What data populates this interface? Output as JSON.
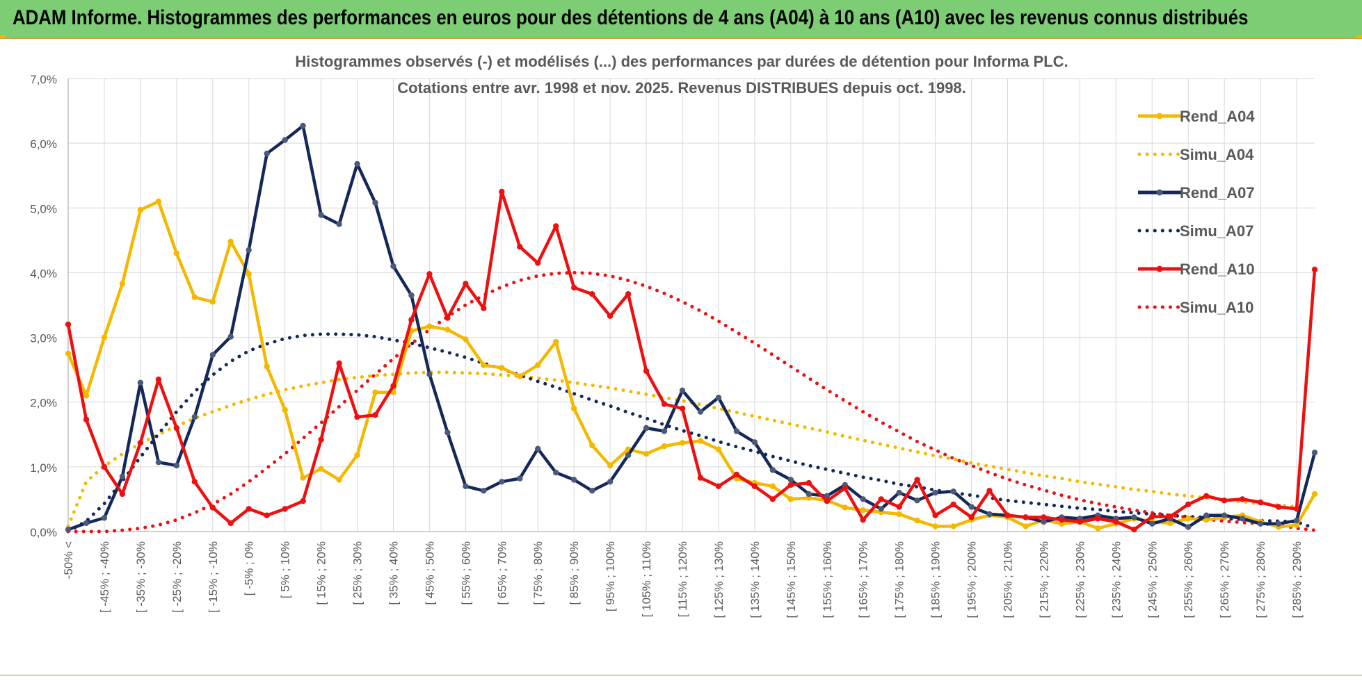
{
  "header": {
    "title": "ADAM Informe. Histogrammes des performances en euros pour des détentions de 4 ans (A04) à 10 ans (A10) avec les revenus connus distribués"
  },
  "colors": {
    "header_bg": "#7ccd74",
    "rend_a04": "#f5b800",
    "rend_a07": "#14285a",
    "rend_a10": "#ee1010",
    "grid": "#d9d9d9"
  },
  "chart_data": {
    "type": "line",
    "title": "Histogrammes observés (-) et modélisés (...) des performances par durées de détention pour Informa PLC.",
    "subtitle": "Cotations entre avr. 1998 et nov. 2025. Revenus DISTRIBUES depuis oct. 1998.",
    "xlabel": "",
    "ylabel": "",
    "ylim": [
      0,
      0.07
    ],
    "yticks": [
      "0,0%",
      "1,0%",
      "2,0%",
      "3,0%",
      "4,0%",
      "5,0%",
      "6,0%",
      "7,0%"
    ],
    "x_tick_labels": [
      "-50% <",
      "[ -45% ; -40%",
      "[ -35% ; -30%",
      "[ -25% ; -20%",
      "[ -15% ; -10%",
      "[ -5% ; 0%",
      "[ 5% ; 10%",
      "[ 15% ; 20%",
      "[ 25% ; 30%",
      "[ 35% ; 40%",
      "[ 45% ; 50%",
      "[ 55% ; 60%",
      "[ 65% ; 70%",
      "[ 75% ; 80%",
      "[ 85% ; 90%",
      "[ 95% ; 100%",
      "[ 105% ; 110%",
      "[ 115% ; 120%",
      "[ 125% ; 130%",
      "[ 135% ; 140%",
      "[ 145% ; 150%",
      "[ 155% ; 160%",
      "[ 165% ; 170%",
      "[ 175% ; 180%",
      "[ 185% ; 190%",
      "[ 195% ; 200%",
      "[ 205% ; 210%",
      "[ 215% ; 220%",
      "[ 225% ; 230%",
      "[ 235% ; 240%",
      "[ 245% ; 250%",
      "[ 255% ; 260%",
      "[ 265% ; 270%",
      "[ 275% ; 280%",
      "[ 285% ; 290%"
    ],
    "n_points": 70,
    "legend_position": "right",
    "series": [
      {
        "name": "Rend_A04",
        "style": "solid",
        "color": "#f5b800",
        "values": [
          2.75,
          2.1,
          3.0,
          3.83,
          4.97,
          5.1,
          4.3,
          3.62,
          3.55,
          4.48,
          3.98,
          2.55,
          1.88,
          0.83,
          0.97,
          0.8,
          1.18,
          2.15,
          2.15,
          3.1,
          3.17,
          3.12,
          2.97,
          2.57,
          2.53,
          2.4,
          2.57,
          2.93,
          1.9,
          1.33,
          1.02,
          1.27,
          1.2,
          1.32,
          1.37,
          1.4,
          1.27,
          0.82,
          0.75,
          0.7,
          0.5,
          0.52,
          0.48,
          0.37,
          0.33,
          0.3,
          0.27,
          0.17,
          0.08,
          0.08,
          0.18,
          0.25,
          0.22,
          0.08,
          0.18,
          0.12,
          0.15,
          0.05,
          0.12,
          0.2,
          0.15,
          0.13,
          0.2,
          0.18,
          0.22,
          0.25,
          0.15,
          0.07,
          0.1,
          0.58
        ]
      },
      {
        "name": "Simu_A04",
        "style": "dotted",
        "color": "#f5b800",
        "values": [
          0.08,
          0.77,
          1.01,
          1.2,
          1.36,
          1.5,
          1.63,
          1.75,
          1.85,
          1.95,
          2.04,
          2.12,
          2.19,
          2.25,
          2.3,
          2.35,
          2.38,
          2.41,
          2.43,
          2.45,
          2.46,
          2.46,
          2.45,
          2.44,
          2.42,
          2.4,
          2.37,
          2.34,
          2.3,
          2.26,
          2.22,
          2.17,
          2.12,
          2.07,
          2.02,
          1.96,
          1.9,
          1.84,
          1.78,
          1.72,
          1.66,
          1.6,
          1.54,
          1.47,
          1.41,
          1.35,
          1.29,
          1.23,
          1.17,
          1.12,
          1.06,
          1.01,
          0.96,
          0.91,
          0.86,
          0.82,
          0.77,
          0.73,
          0.69,
          0.65,
          0.62,
          0.58,
          0.55,
          0.52,
          0.49,
          0.46,
          0.43,
          0.41,
          0.38,
          0.36
        ]
      },
      {
        "name": "Rend_A07",
        "style": "solid",
        "color": "#14285a",
        "values": [
          0.03,
          0.13,
          0.21,
          0.85,
          2.3,
          1.07,
          1.02,
          1.77,
          2.73,
          3.01,
          4.35,
          5.84,
          6.05,
          6.27,
          4.89,
          4.75,
          5.68,
          5.08,
          4.1,
          3.65,
          2.43,
          1.53,
          0.7,
          0.63,
          0.77,
          0.82,
          1.28,
          0.91,
          0.8,
          0.63,
          0.77,
          1.18,
          1.6,
          1.55,
          2.18,
          1.85,
          2.07,
          1.55,
          1.38,
          0.95,
          0.8,
          0.58,
          0.55,
          0.72,
          0.5,
          0.35,
          0.6,
          0.48,
          0.6,
          0.62,
          0.38,
          0.27,
          0.25,
          0.22,
          0.15,
          0.22,
          0.2,
          0.25,
          0.2,
          0.22,
          0.12,
          0.2,
          0.07,
          0.25,
          0.25,
          0.2,
          0.12,
          0.12,
          0.17,
          1.22
        ]
      },
      {
        "name": "Simu_A07",
        "style": "dotted",
        "color": "#14285a",
        "values": [
          0.0,
          0.16,
          0.43,
          0.78,
          1.15,
          1.51,
          1.85,
          2.16,
          2.42,
          2.63,
          2.79,
          2.9,
          2.98,
          3.03,
          3.05,
          3.05,
          3.04,
          3.01,
          2.96,
          2.91,
          2.84,
          2.77,
          2.69,
          2.6,
          2.51,
          2.42,
          2.32,
          2.23,
          2.13,
          2.03,
          1.94,
          1.84,
          1.75,
          1.65,
          1.56,
          1.48,
          1.39,
          1.31,
          1.24,
          1.16,
          1.09,
          1.02,
          0.96,
          0.9,
          0.84,
          0.79,
          0.73,
          0.69,
          0.64,
          0.6,
          0.56,
          0.52,
          0.48,
          0.45,
          0.42,
          0.39,
          0.36,
          0.34,
          0.31,
          0.29,
          0.27,
          0.25,
          0.23,
          0.22,
          0.2,
          0.19,
          0.17,
          0.16,
          0.15,
          0.05
        ]
      },
      {
        "name": "Rend_A10",
        "style": "solid",
        "color": "#ee1010",
        "values": [
          3.2,
          1.73,
          1.0,
          0.58,
          1.37,
          2.35,
          1.6,
          0.77,
          0.37,
          0.13,
          0.35,
          0.25,
          0.35,
          0.47,
          1.42,
          2.6,
          1.77,
          1.8,
          2.25,
          3.27,
          3.98,
          3.3,
          3.83,
          3.45,
          5.25,
          4.4,
          4.15,
          4.72,
          3.77,
          3.67,
          3.33,
          3.67,
          2.48,
          1.97,
          1.9,
          0.83,
          0.7,
          0.88,
          0.7,
          0.5,
          0.72,
          0.75,
          0.47,
          0.67,
          0.18,
          0.5,
          0.38,
          0.8,
          0.25,
          0.42,
          0.22,
          0.63,
          0.25,
          0.22,
          0.22,
          0.18,
          0.15,
          0.2,
          0.15,
          0.03,
          0.23,
          0.23,
          0.42,
          0.55,
          0.48,
          0.5,
          0.45,
          0.38,
          0.35,
          4.05
        ]
      },
      {
        "name": "Simu_A10",
        "style": "dotted",
        "color": "#ee1010",
        "values": [
          0.0,
          0.0,
          0.0,
          0.02,
          0.05,
          0.1,
          0.18,
          0.29,
          0.42,
          0.58,
          0.77,
          0.98,
          1.2,
          1.44,
          1.68,
          1.93,
          2.18,
          2.43,
          2.67,
          2.9,
          3.12,
          3.32,
          3.5,
          3.65,
          3.78,
          3.88,
          3.95,
          3.99,
          4.0,
          3.99,
          3.95,
          3.88,
          3.79,
          3.68,
          3.55,
          3.41,
          3.25,
          3.08,
          2.91,
          2.73,
          2.55,
          2.37,
          2.19,
          2.02,
          1.85,
          1.69,
          1.54,
          1.39,
          1.26,
          1.13,
          1.02,
          0.91,
          0.81,
          0.72,
          0.64,
          0.56,
          0.49,
          0.43,
          0.38,
          0.33,
          0.29,
          0.25,
          0.22,
          0.19,
          0.16,
          0.14,
          0.12,
          0.1,
          0.05,
          0.02
        ]
      }
    ]
  }
}
